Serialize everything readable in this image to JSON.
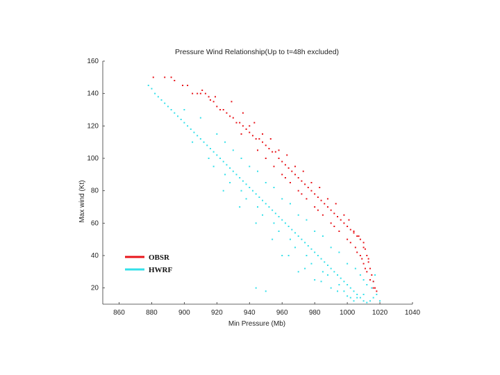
{
  "chart_data": {
    "type": "scatter",
    "title": "Pressure Wind Relationship(Up to t=48h excluded)",
    "xlabel": "Min Pressure (Mb)",
    "ylabel": "Max wind (Kt)",
    "xlim": [
      850,
      1040
    ],
    "ylim": [
      10,
      160
    ],
    "xticks": [
      860,
      880,
      900,
      920,
      940,
      960,
      980,
      1000,
      1020,
      1040
    ],
    "yticks": [
      20,
      40,
      60,
      80,
      100,
      120,
      140,
      160
    ],
    "legend_position": "lower-left",
    "series": [
      {
        "name": "OBSR",
        "color": "#e8141a",
        "points": [
          [
            881,
            150
          ],
          [
            888,
            150
          ],
          [
            892,
            150
          ],
          [
            894,
            148
          ],
          [
            899,
            145
          ],
          [
            902,
            145
          ],
          [
            905,
            140
          ],
          [
            908,
            140
          ],
          [
            910,
            140
          ],
          [
            911,
            142
          ],
          [
            913,
            140
          ],
          [
            915,
            138
          ],
          [
            916,
            136
          ],
          [
            918,
            135
          ],
          [
            919,
            138
          ],
          [
            920,
            132
          ],
          [
            922,
            130
          ],
          [
            924,
            130
          ],
          [
            926,
            128
          ],
          [
            928,
            126
          ],
          [
            930,
            125
          ],
          [
            932,
            122
          ],
          [
            934,
            122
          ],
          [
            936,
            120
          ],
          [
            938,
            118
          ],
          [
            940,
            116
          ],
          [
            942,
            114
          ],
          [
            944,
            112
          ],
          [
            946,
            112
          ],
          [
            948,
            110
          ],
          [
            950,
            108
          ],
          [
            952,
            106
          ],
          [
            954,
            104
          ],
          [
            956,
            104
          ],
          [
            958,
            100
          ],
          [
            960,
            98
          ],
          [
            962,
            96
          ],
          [
            964,
            94
          ],
          [
            966,
            92
          ],
          [
            968,
            90
          ],
          [
            970,
            88
          ],
          [
            972,
            86
          ],
          [
            974,
            84
          ],
          [
            976,
            82
          ],
          [
            978,
            80
          ],
          [
            980,
            78
          ],
          [
            982,
            76
          ],
          [
            984,
            74
          ],
          [
            986,
            72
          ],
          [
            988,
            70
          ],
          [
            990,
            68
          ],
          [
            992,
            66
          ],
          [
            994,
            64
          ],
          [
            996,
            62
          ],
          [
            998,
            60
          ],
          [
            1000,
            58
          ],
          [
            1002,
            56
          ],
          [
            1004,
            54
          ],
          [
            1006,
            52
          ],
          [
            1008,
            50
          ],
          [
            1010,
            48
          ],
          [
            1011,
            44
          ],
          [
            1012,
            40
          ],
          [
            1013,
            36
          ],
          [
            1014,
            32
          ],
          [
            1015,
            28
          ],
          [
            1016,
            24
          ],
          [
            1017,
            20
          ],
          [
            950,
            100
          ],
          [
            955,
            95
          ],
          [
            960,
            90
          ],
          [
            965,
            85
          ],
          [
            970,
            80
          ],
          [
            975,
            75
          ],
          [
            980,
            70
          ],
          [
            985,
            65
          ],
          [
            990,
            60
          ],
          [
            995,
            55
          ],
          [
            1000,
            50
          ],
          [
            1005,
            45
          ],
          [
            1008,
            40
          ],
          [
            1010,
            35
          ],
          [
            1012,
            30
          ],
          [
            1014,
            25
          ],
          [
            1016,
            20
          ],
          [
            1018,
            18
          ],
          [
            935,
            115
          ],
          [
            945,
            105
          ],
          [
            962,
            88
          ],
          [
            972,
            78
          ],
          [
            982,
            68
          ],
          [
            992,
            58
          ],
          [
            1002,
            48
          ],
          [
            1006,
            42
          ],
          [
            1009,
            38
          ],
          [
            1011,
            32
          ],
          [
            940,
            120
          ],
          [
            948,
            115
          ],
          [
            958,
            105
          ],
          [
            968,
            95
          ],
          [
            978,
            85
          ],
          [
            988,
            75
          ],
          [
            998,
            65
          ],
          [
            1004,
            55
          ],
          [
            1010,
            45
          ],
          [
            1013,
            38
          ],
          [
            929,
            135
          ],
          [
            936,
            128
          ],
          [
            943,
            122
          ],
          [
            953,
            112
          ],
          [
            963,
            102
          ],
          [
            973,
            92
          ],
          [
            983,
            82
          ],
          [
            993,
            72
          ],
          [
            1001,
            62
          ],
          [
            1007,
            52
          ]
        ]
      },
      {
        "name": "HWRF",
        "color": "#33e0ea",
        "points": [
          [
            878,
            145
          ],
          [
            880,
            143
          ],
          [
            882,
            140
          ],
          [
            884,
            138
          ],
          [
            886,
            136
          ],
          [
            888,
            134
          ],
          [
            890,
            132
          ],
          [
            892,
            130
          ],
          [
            894,
            128
          ],
          [
            896,
            126
          ],
          [
            898,
            124
          ],
          [
            900,
            122
          ],
          [
            902,
            120
          ],
          [
            904,
            118
          ],
          [
            906,
            116
          ],
          [
            908,
            114
          ],
          [
            910,
            112
          ],
          [
            912,
            110
          ],
          [
            914,
            108
          ],
          [
            916,
            106
          ],
          [
            918,
            104
          ],
          [
            920,
            102
          ],
          [
            922,
            100
          ],
          [
            924,
            98
          ],
          [
            926,
            96
          ],
          [
            928,
            94
          ],
          [
            930,
            92
          ],
          [
            932,
            90
          ],
          [
            934,
            88
          ],
          [
            936,
            86
          ],
          [
            938,
            84
          ],
          [
            940,
            82
          ],
          [
            942,
            80
          ],
          [
            944,
            78
          ],
          [
            946,
            76
          ],
          [
            948,
            74
          ],
          [
            950,
            72
          ],
          [
            952,
            70
          ],
          [
            954,
            68
          ],
          [
            956,
            66
          ],
          [
            958,
            64
          ],
          [
            960,
            62
          ],
          [
            962,
            60
          ],
          [
            964,
            58
          ],
          [
            966,
            56
          ],
          [
            968,
            54
          ],
          [
            970,
            52
          ],
          [
            972,
            50
          ],
          [
            974,
            48
          ],
          [
            976,
            46
          ],
          [
            978,
            44
          ],
          [
            980,
            42
          ],
          [
            982,
            40
          ],
          [
            984,
            38
          ],
          [
            986,
            36
          ],
          [
            988,
            34
          ],
          [
            990,
            32
          ],
          [
            992,
            30
          ],
          [
            994,
            28
          ],
          [
            996,
            26
          ],
          [
            998,
            24
          ],
          [
            1000,
            22
          ],
          [
            1002,
            20
          ],
          [
            1004,
            18
          ],
          [
            1006,
            16
          ],
          [
            1008,
            14
          ],
          [
            1010,
            12
          ],
          [
            1012,
            11
          ],
          [
            1014,
            12
          ],
          [
            1016,
            14
          ],
          [
            900,
            130
          ],
          [
            910,
            125
          ],
          [
            920,
            115
          ],
          [
            925,
            110
          ],
          [
            935,
            100
          ],
          [
            945,
            92
          ],
          [
            955,
            82
          ],
          [
            965,
            72
          ],
          [
            975,
            62
          ],
          [
            985,
            52
          ],
          [
            995,
            42
          ],
          [
            1005,
            32
          ],
          [
            1010,
            25
          ],
          [
            1015,
            20
          ],
          [
            1018,
            16
          ],
          [
            1020,
            12
          ],
          [
            905,
            110
          ],
          [
            915,
            100
          ],
          [
            925,
            90
          ],
          [
            935,
            80
          ],
          [
            945,
            70
          ],
          [
            955,
            60
          ],
          [
            965,
            50
          ],
          [
            975,
            40
          ],
          [
            985,
            30
          ],
          [
            995,
            22
          ],
          [
            930,
            105
          ],
          [
            940,
            95
          ],
          [
            950,
            85
          ],
          [
            960,
            75
          ],
          [
            970,
            65
          ],
          [
            980,
            55
          ],
          [
            990,
            45
          ],
          [
            1000,
            35
          ],
          [
            1008,
            28
          ],
          [
            1012,
            22
          ],
          [
            918,
            95
          ],
          [
            928,
            85
          ],
          [
            938,
            75
          ],
          [
            948,
            65
          ],
          [
            958,
            55
          ],
          [
            968,
            45
          ],
          [
            978,
            35
          ],
          [
            988,
            28
          ],
          [
            998,
            18
          ],
          [
            1006,
            14
          ],
          [
            944,
            20
          ],
          [
            950,
            18
          ],
          [
            960,
            40
          ],
          [
            970,
            30
          ],
          [
            980,
            25
          ],
          [
            990,
            20
          ],
          [
            1000,
            15
          ],
          [
            1004,
            12
          ],
          [
            1016,
            24
          ],
          [
            1017,
            28
          ],
          [
            924,
            80
          ],
          [
            934,
            70
          ],
          [
            944,
            60
          ],
          [
            954,
            50
          ],
          [
            964,
            40
          ],
          [
            974,
            32
          ],
          [
            984,
            24
          ],
          [
            994,
            18
          ],
          [
            1002,
            14
          ],
          [
            1010,
            16
          ]
        ]
      }
    ]
  }
}
